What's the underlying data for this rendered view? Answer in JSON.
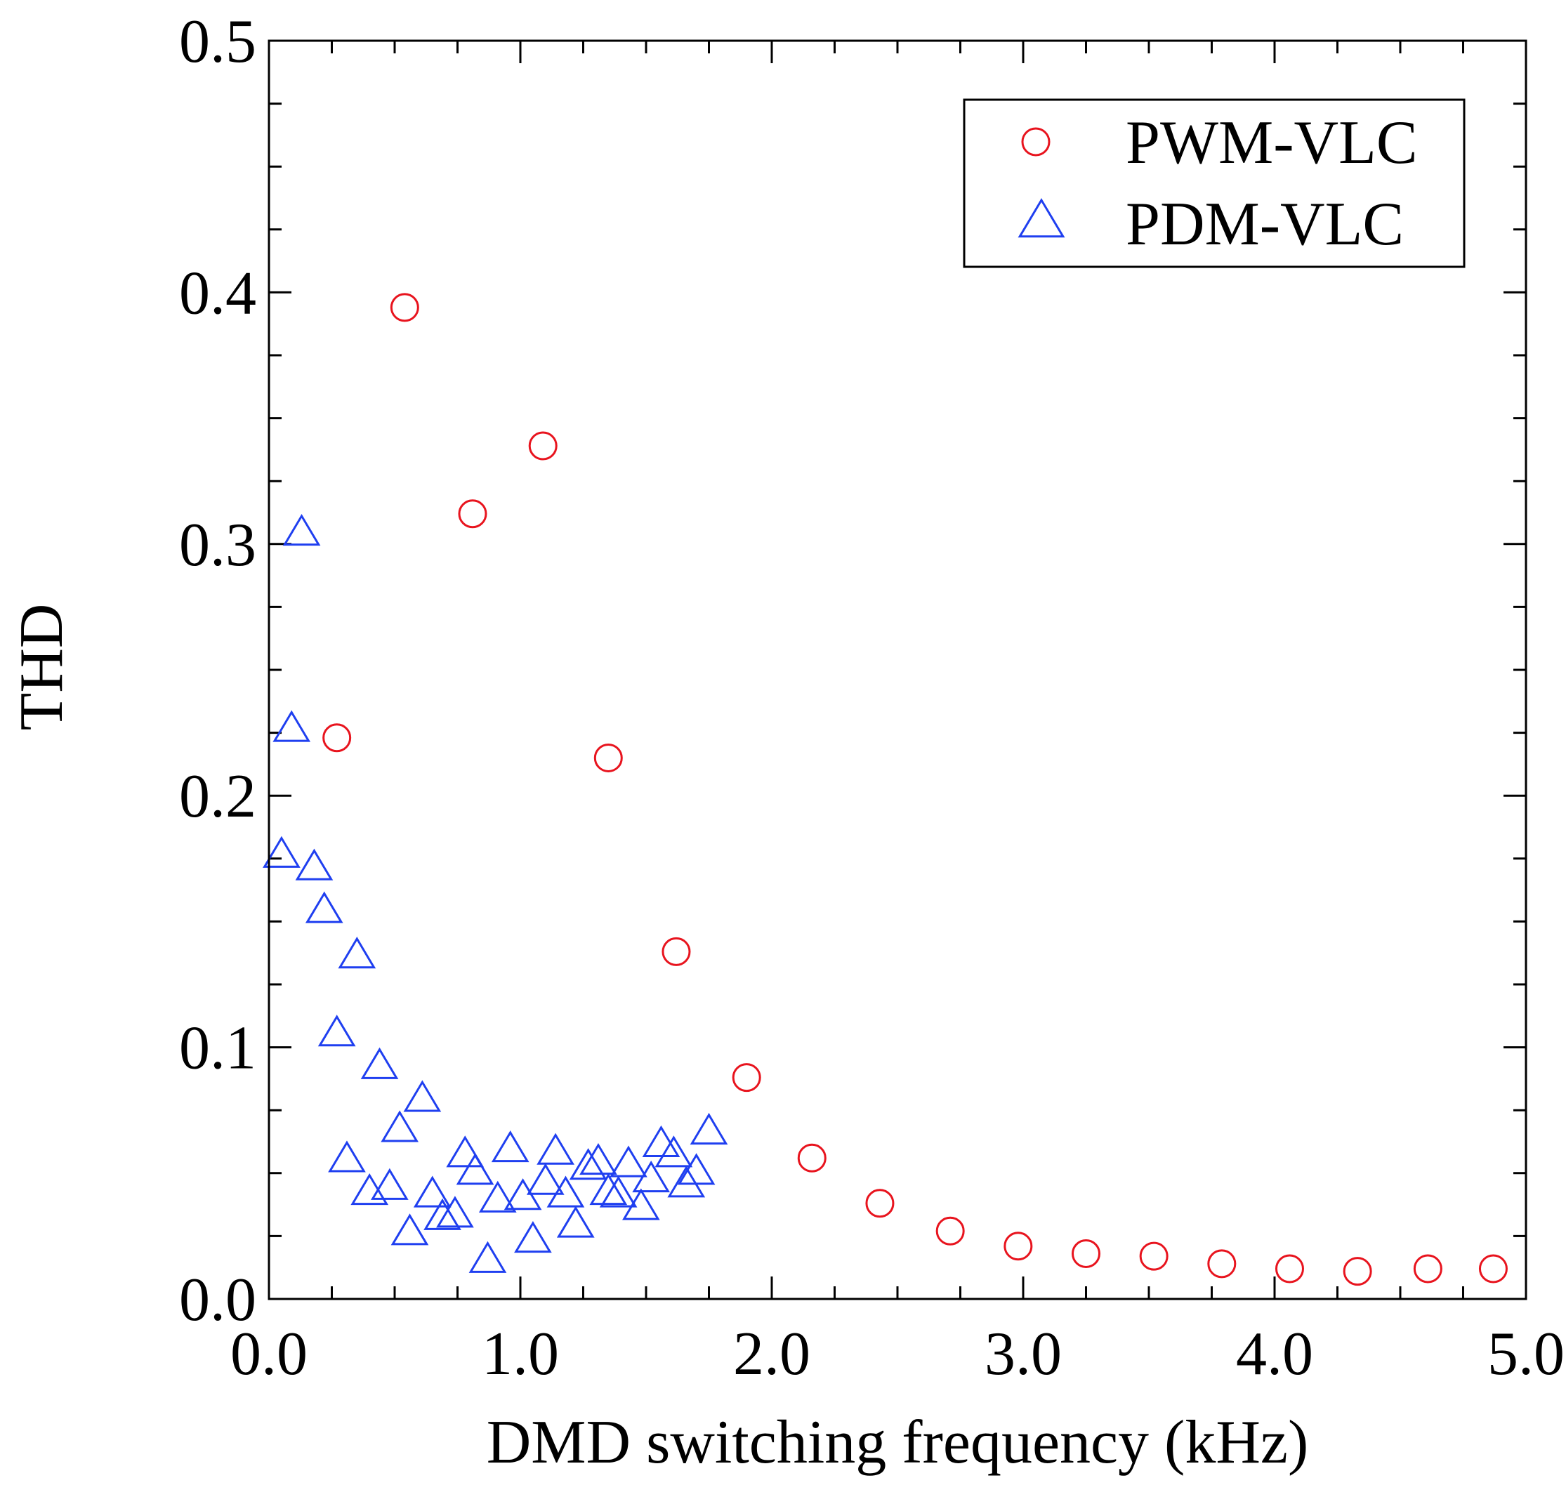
{
  "chart_data": {
    "type": "scatter",
    "title": "",
    "xlabel": "DMD switching frequency (kHz)",
    "ylabel": "THD",
    "xlim": [
      0,
      5
    ],
    "ylim": [
      0,
      0.5
    ],
    "x_ticks": [
      "0.0",
      "1.0",
      "2.0",
      "3.0",
      "4.0",
      "5.0"
    ],
    "y_ticks": [
      "0.0",
      "0.1",
      "0.2",
      "0.3",
      "0.4",
      "0.5"
    ],
    "x_tick_values": [
      0,
      1,
      2,
      3,
      4,
      5
    ],
    "y_tick_values": [
      0,
      0.1,
      0.2,
      0.3,
      0.4,
      0.5
    ],
    "grid": false,
    "legend_position": "top-right",
    "series": [
      {
        "name": "PWM-VLC",
        "marker": "circle",
        "color": "#e8141e",
        "points": [
          [
            0.27,
            0.223
          ],
          [
            0.54,
            0.394
          ],
          [
            0.81,
            0.312
          ],
          [
            1.09,
            0.339
          ],
          [
            1.35,
            0.215
          ],
          [
            1.62,
            0.138
          ],
          [
            1.9,
            0.088
          ],
          [
            2.16,
            0.056
          ],
          [
            2.43,
            0.038
          ],
          [
            2.71,
            0.027
          ],
          [
            2.98,
            0.021
          ],
          [
            3.25,
            0.018
          ],
          [
            3.52,
            0.017
          ],
          [
            3.79,
            0.014
          ],
          [
            4.06,
            0.012
          ],
          [
            4.33,
            0.011
          ],
          [
            4.61,
            0.012
          ],
          [
            4.87,
            0.012
          ]
        ]
      },
      {
        "name": "PDM-VLC",
        "marker": "triangle",
        "color": "#1f3ff0",
        "points": [
          [
            0.05,
            0.177
          ],
          [
            0.09,
            0.227
          ],
          [
            0.13,
            0.305
          ],
          [
            0.18,
            0.172
          ],
          [
            0.22,
            0.155
          ],
          [
            0.27,
            0.106
          ],
          [
            0.31,
            0.056
          ],
          [
            0.35,
            0.137
          ],
          [
            0.4,
            0.043
          ],
          [
            0.44,
            0.093
          ],
          [
            0.48,
            0.045
          ],
          [
            0.52,
            0.068
          ],
          [
            0.56,
            0.027
          ],
          [
            0.61,
            0.08
          ],
          [
            0.65,
            0.042
          ],
          [
            0.69,
            0.033
          ],
          [
            0.74,
            0.034
          ],
          [
            0.78,
            0.058
          ],
          [
            0.82,
            0.051
          ],
          [
            0.87,
            0.016
          ],
          [
            0.91,
            0.04
          ],
          [
            0.96,
            0.06
          ],
          [
            1.01,
            0.041
          ],
          [
            1.05,
            0.024
          ],
          [
            1.1,
            0.047
          ],
          [
            1.14,
            0.059
          ],
          [
            1.18,
            0.042
          ],
          [
            1.22,
            0.03
          ],
          [
            1.27,
            0.053
          ],
          [
            1.31,
            0.055
          ],
          [
            1.35,
            0.043
          ],
          [
            1.39,
            0.042
          ],
          [
            1.43,
            0.054
          ],
          [
            1.48,
            0.037
          ],
          [
            1.52,
            0.048
          ],
          [
            1.56,
            0.062
          ],
          [
            1.61,
            0.058
          ],
          [
            1.66,
            0.046
          ],
          [
            1.7,
            0.051
          ],
          [
            1.75,
            0.067
          ]
        ]
      }
    ]
  }
}
